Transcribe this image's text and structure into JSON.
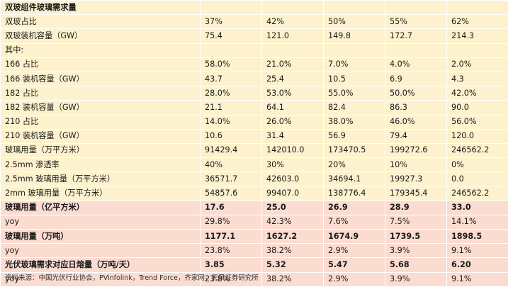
{
  "table": {
    "rows": [
      {
        "label": "双玻组件玻璃需求量",
        "values": [
          "",
          "",
          "",
          "",
          ""
        ],
        "tone": "yellow",
        "bold": true
      },
      {
        "label": "双玻占比",
        "values": [
          "37%",
          "42%",
          "50%",
          "55%",
          "62%"
        ],
        "tone": "yellow",
        "bold": false
      },
      {
        "label": "双玻装机容量（GW）",
        "values": [
          "75.4",
          "121.0",
          "149.8",
          "172.7",
          "214.3"
        ],
        "tone": "yellow",
        "bold": false
      },
      {
        "label": "其中:",
        "values": [
          "",
          "",
          "",
          "",
          ""
        ],
        "tone": "yellow",
        "bold": false
      },
      {
        "label": "166 占比",
        "values": [
          "58.0%",
          "21.0%",
          "7.0%",
          "4.0%",
          "2.0%"
        ],
        "tone": "yellow",
        "bold": false
      },
      {
        "label": "166 装机容量（GW）",
        "values": [
          "43.7",
          "25.4",
          "10.5",
          "6.9",
          "4.3"
        ],
        "tone": "yellow",
        "bold": false
      },
      {
        "label": "182 占比",
        "values": [
          "28.0%",
          "53.0%",
          "55.0%",
          "50.0%",
          "42.0%"
        ],
        "tone": "yellow",
        "bold": false
      },
      {
        "label": "182 装机容量（GW）",
        "values": [
          "21.1",
          "64.1",
          "82.4",
          "86.3",
          "90.0"
        ],
        "tone": "yellow",
        "bold": false
      },
      {
        "label": "210 占比",
        "values": [
          "14.0%",
          "26.0%",
          "38.0%",
          "46.0%",
          "56.0%"
        ],
        "tone": "yellow",
        "bold": false
      },
      {
        "label": "210 装机容量（GW）",
        "values": [
          "10.6",
          "31.4",
          "56.9",
          "79.4",
          "120.0"
        ],
        "tone": "yellow",
        "bold": false
      },
      {
        "label": "玻璃用量（万平方米）",
        "values": [
          "91429.4",
          "142010.0",
          "173470.5",
          "199272.6",
          "246562.2"
        ],
        "tone": "yellow",
        "bold": false
      },
      {
        "label": "2.5mm 渗透率",
        "values": [
          "40%",
          "30%",
          "20%",
          "10%",
          "0%"
        ],
        "tone": "yellow",
        "bold": false
      },
      {
        "label": "2.5mm 玻璃用量（万平方米）",
        "values": [
          "36571.7",
          "42603.0",
          "34694.1",
          "19927.3",
          "0.0"
        ],
        "tone": "yellow",
        "bold": false
      },
      {
        "label": "2mm 玻璃用量（万平方米）",
        "values": [
          "54857.6",
          "99407.0",
          "138776.4",
          "179345.4",
          "246562.2"
        ],
        "tone": "yellow",
        "bold": false
      },
      {
        "label": "玻璃用量（亿平方米）",
        "values": [
          "17.6",
          "25.0",
          "26.9",
          "28.9",
          "33.0"
        ],
        "tone": "pink",
        "bold": true
      },
      {
        "label": "yoy",
        "values": [
          "29.8%",
          "42.3%",
          "7.6%",
          "7.5%",
          "14.1%"
        ],
        "tone": "pink",
        "bold": false
      },
      {
        "label": "玻璃用量（万吨）",
        "values": [
          "1177.1",
          "1627.2",
          "1674.9",
          "1739.5",
          "1898.5"
        ],
        "tone": "pink",
        "bold": true
      },
      {
        "label": "yoy",
        "values": [
          "23.8%",
          "38.2%",
          "2.9%",
          "3.9%",
          "9.1%"
        ],
        "tone": "pink",
        "bold": false
      },
      {
        "label": "光伏玻璃需求对应日熔量（万吨/天）",
        "values": [
          "3.85",
          "5.32",
          "5.47",
          "5.68",
          "6.20"
        ],
        "tone": "pink",
        "bold": true
      },
      {
        "label": "yoy",
        "values": [
          "23.8%",
          "38.2%",
          "2.9%",
          "3.9%",
          "9.1%"
        ],
        "tone": "pink",
        "bold": false
      }
    ]
  },
  "source": "资料来源：中国光伏行业协会，PVinfolink，Trend Force，齐家网，天风证券研究所"
}
